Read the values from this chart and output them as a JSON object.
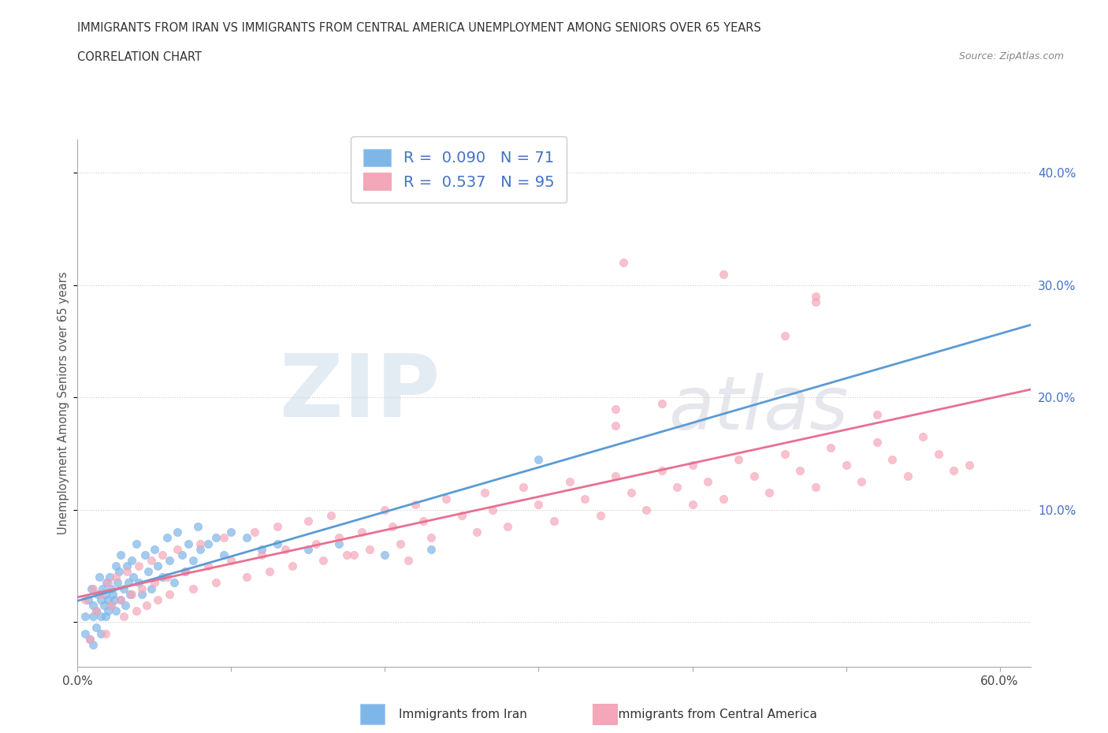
{
  "title_line1": "IMMIGRANTS FROM IRAN VS IMMIGRANTS FROM CENTRAL AMERICA UNEMPLOYMENT AMONG SENIORS OVER 65 YEARS",
  "title_line2": "CORRELATION CHART",
  "source": "Source: ZipAtlas.com",
  "ylabel": "Unemployment Among Seniors over 65 years",
  "xlim": [
    0.0,
    0.62
  ],
  "ylim": [
    -0.04,
    0.43
  ],
  "yticks_right": [
    0.1,
    0.2,
    0.3,
    0.4
  ],
  "ytick_right_labels": [
    "10.0%",
    "20.0%",
    "30.0%",
    "40.0%"
  ],
  "color_iran": "#7EB6E8",
  "color_ca": "#F4A7B9",
  "trendline_iran_color": "#5B9BD5",
  "trendline_ca_color": "#E87090",
  "R_iran": 0.09,
  "N_iran": 71,
  "R_ca": 0.537,
  "N_ca": 95,
  "watermark_zip": "ZIP",
  "watermark_atlas": "atlas",
  "background_color": "#ffffff",
  "grid_color": "#cccccc"
}
